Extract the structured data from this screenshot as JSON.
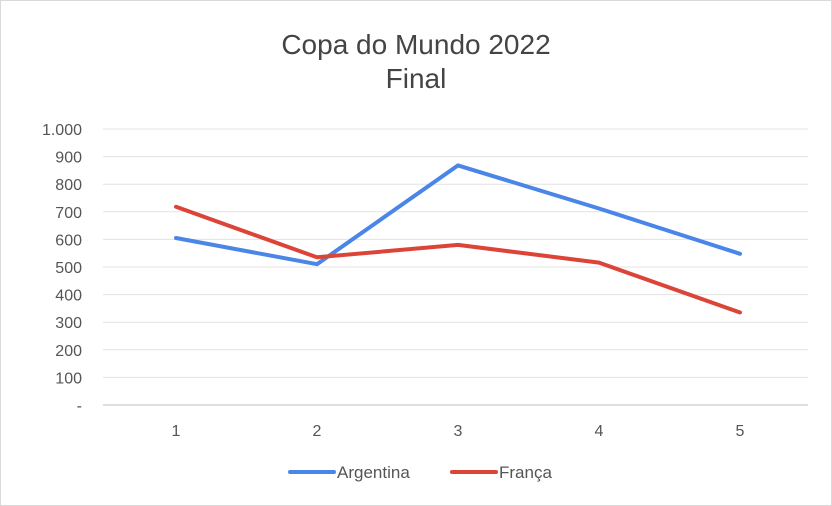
{
  "chart_data": {
    "type": "line",
    "title": "Copa do Mundo 2022",
    "subtitle": "Final",
    "x": [
      1,
      2,
      3,
      4,
      5
    ],
    "x_tick_labels": [
      "1",
      "2",
      "3",
      "4",
      "5"
    ],
    "y_tick_labels": [
      "-",
      "100",
      "200",
      "300",
      "400",
      "500",
      "600",
      "700",
      "800",
      "900",
      "1.000"
    ],
    "ylim": [
      0,
      1000
    ],
    "grid": true,
    "legend_position": "bottom",
    "series": [
      {
        "name": "Argentina",
        "color": "#4a86e8",
        "values": [
          605,
          510,
          868,
          712,
          548
        ]
      },
      {
        "name": "França",
        "color": "#dd4438",
        "values": [
          718,
          535,
          580,
          516,
          335
        ]
      }
    ]
  }
}
